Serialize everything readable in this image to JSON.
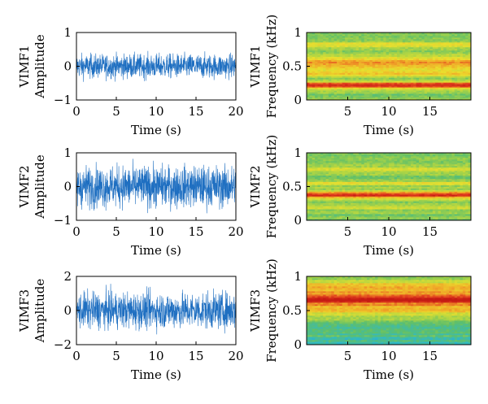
{
  "colors": {
    "signal": "#1f6fc1",
    "axis": "#000000",
    "spectrogram_colormap": [
      "#1a7fe0",
      "#2fb9c8",
      "#5fbf6a",
      "#b3d642",
      "#eadf2e",
      "#f0a728",
      "#e2401f",
      "#c41a14"
    ]
  },
  "chart_data": [
    {
      "type": "line",
      "ylabel_line1": "VIMF1",
      "ylabel_line2": "Amplitude",
      "xlabel": "Time (s)",
      "xlim": [
        0,
        20
      ],
      "ylim": [
        -1,
        1
      ],
      "xticks": [
        "0",
        "5",
        "10",
        "15",
        "20"
      ],
      "yticks": [
        "1",
        "0",
        "−1"
      ],
      "signal_amplitude": 0.42
    },
    {
      "type": "heatmap",
      "ylabel_line1": "VIMF1",
      "ylabel_line2": "Frequency (kHz)",
      "xlabel": "Time (s)",
      "xlim": [
        0,
        20
      ],
      "ylim": [
        0,
        1
      ],
      "xticks": [
        "5",
        "10",
        "15"
      ],
      "yticks": [
        "1",
        "0.5",
        "0"
      ],
      "bands": [
        {
          "freq": 0.22,
          "width": 0.05,
          "level": 1.0
        },
        {
          "freq": 0.55,
          "width": 0.09,
          "level": 0.62
        },
        {
          "freq": 0.4,
          "width": 0.05,
          "level": 0.45
        },
        {
          "freq": 0.82,
          "width": 0.05,
          "level": 0.42
        }
      ]
    },
    {
      "type": "line",
      "ylabel_line1": "VIMF2",
      "ylabel_line2": "Amplitude",
      "xlabel": "Time (s)",
      "xlim": [
        0,
        20
      ],
      "ylim": [
        -1,
        1
      ],
      "xticks": [
        "0",
        "5",
        "10",
        "15",
        "20"
      ],
      "yticks": [
        "1",
        "0",
        "−1"
      ],
      "signal_amplitude": 0.72
    },
    {
      "type": "heatmap",
      "ylabel_line1": "VIMF2",
      "ylabel_line2": "Frequency (kHz)",
      "xlabel": "Time (s)",
      "xlim": [
        0,
        20
      ],
      "ylim": [
        0,
        1
      ],
      "xticks": [
        "5",
        "10",
        "15"
      ],
      "yticks": [
        "1",
        "0.5",
        "0"
      ],
      "bands": [
        {
          "freq": 0.38,
          "width": 0.05,
          "level": 1.0
        },
        {
          "freq": 0.55,
          "width": 0.04,
          "level": 0.35
        },
        {
          "freq": 0.76,
          "width": 0.04,
          "level": 0.32
        },
        {
          "freq": 0.2,
          "width": 0.04,
          "level": 0.3
        }
      ]
    },
    {
      "type": "line",
      "ylabel_line1": "VIMF3",
      "ylabel_line2": "Amplitude",
      "xlabel": "Time (s)",
      "xlim": [
        0,
        20
      ],
      "ylim": [
        -2,
        2
      ],
      "xticks": [
        "0",
        "5",
        "10",
        "15",
        "20"
      ],
      "yticks": [
        "2",
        "0",
        "−2"
      ],
      "signal_amplitude": 1.25
    },
    {
      "type": "heatmap",
      "ylabel_line1": "VIMF3",
      "ylabel_line2": "Frequency (kHz)",
      "xlabel": "Time (s)",
      "xlim": [
        0,
        20
      ],
      "ylim": [
        0,
        1
      ],
      "xticks": [
        "5",
        "10",
        "15"
      ],
      "yticks": [
        "1",
        "0.5",
        "0"
      ],
      "bands": [
        {
          "freq": 0.66,
          "width": 0.07,
          "level": 1.0
        },
        {
          "freq": 0.82,
          "width": 0.12,
          "level": 0.6
        },
        {
          "freq": 0.52,
          "width": 0.08,
          "level": 0.55
        },
        {
          "freq": 0.18,
          "width": 0.1,
          "level": 0.05
        }
      ]
    }
  ]
}
